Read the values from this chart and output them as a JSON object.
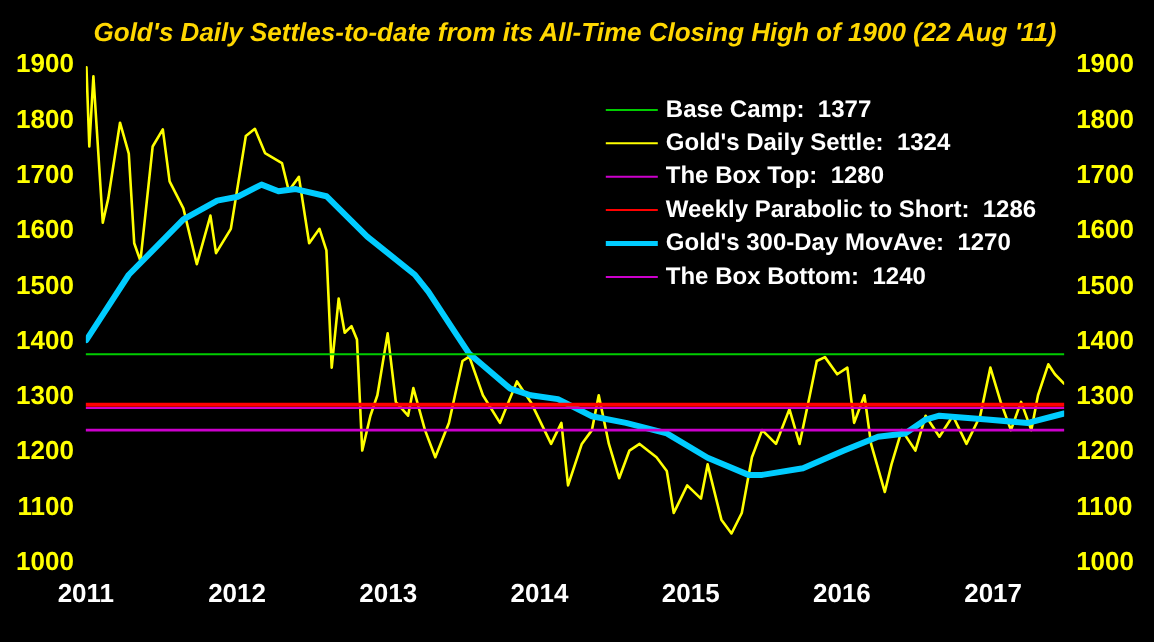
{
  "chart_data": {
    "type": "line",
    "title": "Gold's Daily Settles-to-date from its All-Time Closing High of 1900 (22 Aug '11)",
    "xlim": [
      2011,
      2017.47
    ],
    "xticks": [
      2011,
      2012,
      2013,
      2014,
      2015,
      2016,
      2017
    ],
    "ylim": [
      1000,
      1900
    ],
    "yticks": [
      1000,
      1100,
      1200,
      1300,
      1400,
      1500,
      1600,
      1700,
      1800,
      1900
    ],
    "y2lim": [
      1000,
      1900
    ],
    "y2ticks": [
      1000,
      1100,
      1200,
      1300,
      1400,
      1500,
      1600,
      1700,
      1800,
      1900
    ],
    "grid": false,
    "legend": "top right",
    "marker": "none",
    "line_style": "solid",
    "series": [
      {
        "name": "Base Camp:  1377",
        "color": "#00cc00",
        "x": [
          2011,
          2017.47
        ],
        "values": [
          1377,
          1377
        ]
      },
      {
        "name": "Gold's Daily Settle:  1324",
        "color": "#ffff00",
        "x": [
          2011.004,
          2011.023,
          2011.05,
          2011.112,
          2011.149,
          2011.226,
          2011.284,
          2011.32,
          2011.361,
          2011.442,
          2011.509,
          2011.554,
          2011.645,
          2011.734,
          2011.824,
          2011.861,
          2011.959,
          2012.058,
          2012.118,
          2012.185,
          2012.297,
          2012.342,
          2012.409,
          2012.477,
          2012.545,
          2012.591,
          2012.626,
          2012.672,
          2012.712,
          2012.757,
          2012.793,
          2012.828,
          2012.882,
          2012.928,
          2012.996,
          2013.05,
          2013.131,
          2013.166,
          2013.243,
          2013.311,
          2013.401,
          2013.491,
          2013.536,
          2013.626,
          2013.739,
          2013.851,
          2013.942,
          2014.077,
          2014.145,
          2014.189,
          2014.28,
          2014.347,
          2014.392,
          2014.459,
          2014.527,
          2014.595,
          2014.662,
          2014.774,
          2014.842,
          2014.888,
          2014.977,
          2015.068,
          2015.112,
          2015.203,
          2015.27,
          2015.338,
          2015.405,
          2015.473,
          2015.564,
          2015.653,
          2015.72,
          2015.788,
          2015.834,
          2015.888,
          2015.969,
          2016.036,
          2016.081,
          2016.149,
          2016.193,
          2016.284,
          2016.328,
          2016.396,
          2016.486,
          2016.554,
          2016.645,
          2016.734,
          2016.824,
          2016.915,
          2016.982,
          2017.05,
          2017.118,
          2017.185,
          2017.253,
          2017.297,
          2017.365,
          2017.409,
          2017.469
        ],
        "values": [
          1896,
          1753,
          1880,
          1615,
          1660,
          1796,
          1740,
          1578,
          1546,
          1753,
          1784,
          1690,
          1641,
          1540,
          1628,
          1560,
          1604,
          1772,
          1785,
          1741,
          1723,
          1673,
          1698,
          1578,
          1604,
          1565,
          1353,
          1478,
          1416,
          1428,
          1404,
          1203,
          1266,
          1303,
          1415,
          1291,
          1266,
          1316,
          1240,
          1191,
          1253,
          1365,
          1373,
          1303,
          1253,
          1328,
          1291,
          1215,
          1253,
          1140,
          1215,
          1240,
          1303,
          1215,
          1153,
          1203,
          1215,
          1191,
          1166,
          1090,
          1140,
          1116,
          1178,
          1078,
          1053,
          1090,
          1191,
          1240,
          1215,
          1278,
          1215,
          1303,
          1365,
          1372,
          1341,
          1353,
          1253,
          1303,
          1215,
          1128,
          1178,
          1240,
          1203,
          1266,
          1228,
          1266,
          1215,
          1266,
          1353,
          1291,
          1240,
          1291,
          1240,
          1303,
          1359,
          1341,
          1324
        ]
      },
      {
        "name": "The Box Top:  1280",
        "color": "#cc00cc",
        "x": [
          2011,
          2017.47
        ],
        "values": [
          1280,
          1280
        ]
      },
      {
        "name": "Weekly Parabolic to Short:  1286",
        "color": "#ff0000",
        "x": [
          2011,
          2017.47
        ],
        "values": [
          1286,
          1286
        ]
      },
      {
        "name": "Gold's 300-Day MovAve:  1270",
        "color": "#00ccff",
        "x": [
          2011.004,
          2011.284,
          2011.645,
          2011.869,
          2012.004,
          2012.162,
          2012.274,
          2012.388,
          2012.591,
          2012.861,
          2013.176,
          2013.266,
          2013.446,
          2013.536,
          2013.807,
          2013.942,
          2014.122,
          2014.347,
          2014.572,
          2014.842,
          2015.112,
          2015.382,
          2015.473,
          2015.743,
          2016.014,
          2016.239,
          2016.419,
          2016.554,
          2016.645,
          2016.959,
          2017.23,
          2017.469
        ],
        "values": [
          1403,
          1521,
          1621,
          1655,
          1662,
          1684,
          1672,
          1676,
          1663,
          1590,
          1521,
          1490,
          1415,
          1378,
          1315,
          1303,
          1296,
          1265,
          1253,
          1234,
          1190,
          1159,
          1159,
          1171,
          1203,
          1228,
          1234,
          1259,
          1266,
          1259,
          1253,
          1270
        ]
      },
      {
        "name": "The Box Bottom:  1240",
        "color": "#cc00cc",
        "x": [
          2011,
          2017.47
        ],
        "values": [
          1240,
          1240
        ]
      }
    ]
  }
}
